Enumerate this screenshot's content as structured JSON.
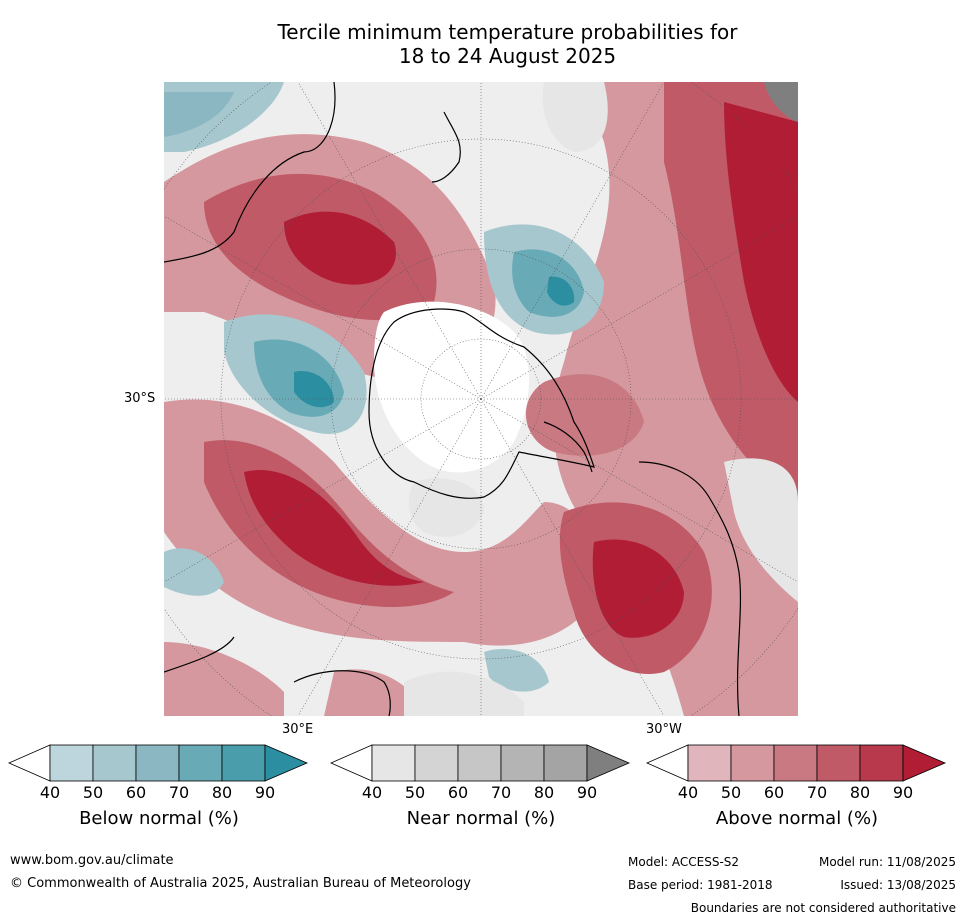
{
  "title": {
    "line1": "Tercile minimum temperature probabilities for",
    "line2": "18 to 24 August 2025"
  },
  "map": {
    "projection": "south-polar-stereographic",
    "gridlines": "dotted",
    "labels": {
      "lat_left": "30°S",
      "lon_bottom_left": "30°E",
      "lon_bottom_right": "30°W"
    },
    "colors": {
      "below": [
        "#bdd5dc",
        "#a7c7ce",
        "#8ab7c2",
        "#69aab7",
        "#4a9daa",
        "#2c8fa1"
      ],
      "near": [
        "#e6e6e6",
        "#d4d4d4",
        "#c6c6c6",
        "#b4b4b4",
        "#a4a4a4",
        "#7f7f7f"
      ],
      "above": [
        "#e0b6bc",
        "#d5989e",
        "#c87982",
        "#c05a67",
        "#b7394b",
        "#b01d35"
      ],
      "land_outline": "#000000"
    }
  },
  "colorbars": [
    {
      "title": "Below normal (%)",
      "ticks": [
        "40",
        "50",
        "60",
        "70",
        "80",
        "90"
      ],
      "palette": "below"
    },
    {
      "title": "Near normal (%)",
      "ticks": [
        "40",
        "50",
        "60",
        "70",
        "80",
        "90"
      ],
      "palette": "near"
    },
    {
      "title": "Above normal (%)",
      "ticks": [
        "40",
        "50",
        "60",
        "70",
        "80",
        "90"
      ],
      "palette": "above"
    }
  ],
  "footer": {
    "website": "www.bom.gov.au/climate",
    "copyright": "© Commonwealth of Australia 2025, Australian Bureau of Meteorology",
    "model": "Model: ACCESS-S2",
    "base_period": "Base period: 1981-2018",
    "model_run": "Model run: 11/08/2025",
    "issued": "Issued: 13/08/2025",
    "disclaimer": "Boundaries are not considered authoritative"
  }
}
